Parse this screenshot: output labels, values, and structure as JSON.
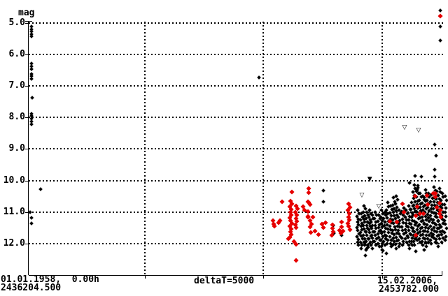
{
  "labels": {
    "mag": "mag",
    "left_date": "01.01.1958,  0.00h",
    "left_jd": "2436204.500",
    "center_delta": "deltaT=5000",
    "right_date": "15.02.2006,  1",
    "right_jd": "2453782.000"
  },
  "colors": {
    "black": "#000000",
    "red": "#e60000",
    "background": "#ffffff"
  },
  "glyphs": {
    "open_triangle_down": "▽",
    "filled_triangle_down": "▼"
  },
  "chart_data": {
    "type": "scatter",
    "title": "",
    "ylabel": "mag",
    "grid": "dotted",
    "y_axis": {
      "inverted": true,
      "ylim": [
        4.4,
        12.7
      ],
      "ticks": [
        5,
        6,
        7,
        8,
        9,
        10,
        11,
        12
      ],
      "tick_labels": [
        "5.0",
        "6.0",
        "7.0",
        "8.0",
        "9.0",
        "10.0",
        "11.0",
        "12.0"
      ]
    },
    "x_axis": {
      "unit": "JD",
      "start_jd": 2436204.5,
      "end_jd": 2453782.0,
      "grid_interval_days": 5000,
      "grid_days": [
        5000,
        10000,
        15000
      ],
      "start_label": "01.01.1958,  0.00h",
      "start_jd_label": "2436204.500",
      "interval_label": "deltaT=5000",
      "end_label": "15.02.2006,  1",
      "end_jd_label": "2453782.000"
    },
    "points_format": "[days_since_start_jd, magnitude]",
    "runs_format": "[days_since_start_jd, mag_start, mag_end, count]",
    "series": [
      {
        "name": "series-black",
        "color": "#000000",
        "marker": "diamond",
        "points": [
          [
            240,
            5.11
          ],
          [
            240,
            5.2
          ],
          [
            240,
            5.28
          ],
          [
            240,
            5.36
          ],
          [
            240,
            5.44
          ],
          [
            240,
            6.3
          ],
          [
            240,
            6.39
          ],
          [
            240,
            6.48
          ],
          [
            240,
            6.62
          ],
          [
            240,
            6.7
          ],
          [
            240,
            6.78
          ],
          [
            265,
            7.38
          ],
          [
            240,
            7.88
          ],
          [
            240,
            7.96
          ],
          [
            240,
            8.05
          ],
          [
            240,
            8.14
          ],
          [
            240,
            8.22
          ],
          [
            620,
            10.28
          ],
          [
            180,
            11.0
          ],
          [
            240,
            11.18
          ],
          [
            240,
            11.36
          ],
          [
            9820,
            6.74
          ],
          [
            12540,
            10.33
          ],
          [
            12540,
            10.67
          ],
          [
            12950,
            11.42
          ],
          [
            12980,
            11.67
          ],
          [
            13310,
            11.74
          ],
          [
            16170,
            10.08
          ],
          [
            16400,
            9.86
          ],
          [
            16670,
            9.88
          ],
          [
            17230,
            8.85
          ],
          [
            17290,
            9.22
          ],
          [
            17230,
            9.66
          ],
          [
            17230,
            9.88
          ],
          [
            16530,
            10.16
          ],
          [
            16530,
            10.24
          ],
          [
            16460,
            10.35
          ],
          [
            17460,
            4.62
          ],
          [
            17460,
            5.12
          ],
          [
            17460,
            5.57
          ],
          [
            14340,
            12.2
          ],
          [
            14310,
            12.38
          ],
          [
            14430,
            12.12
          ],
          [
            15050,
            12.22
          ],
          [
            15190,
            12.3
          ],
          [
            16430,
            12.24
          ],
          [
            16870,
            11.98
          ]
        ],
        "runs": [
          [
            13990,
            10.95,
            12.05,
            13
          ],
          [
            14130,
            11.05,
            12.15,
            12
          ],
          [
            14250,
            10.8,
            12.05,
            13
          ],
          [
            14370,
            11.0,
            12.15,
            12
          ],
          [
            14490,
            10.95,
            11.95,
            11
          ],
          [
            14600,
            11.1,
            12.15,
            11
          ],
          [
            14720,
            11.0,
            12.05,
            11
          ],
          [
            14870,
            11.1,
            12.1,
            11
          ],
          [
            14990,
            10.95,
            12.2,
            13
          ],
          [
            15130,
            11.0,
            12.05,
            11
          ],
          [
            15250,
            10.7,
            12.0,
            12
          ],
          [
            15370,
            10.8,
            12.1,
            13
          ],
          [
            15490,
            10.55,
            12.05,
            14
          ],
          [
            15610,
            10.5,
            12.15,
            15
          ],
          [
            15730,
            10.95,
            12.1,
            12
          ],
          [
            15870,
            10.75,
            12.05,
            12
          ],
          [
            16020,
            10.95,
            11.95,
            11
          ],
          [
            16140,
            10.8,
            12.15,
            13
          ],
          [
            16260,
            10.7,
            12.05,
            13
          ],
          [
            16370,
            10.15,
            11.1,
            10
          ],
          [
            16370,
            11.3,
            12.05,
            8
          ],
          [
            16490,
            10.3,
            11.9,
            15
          ],
          [
            16610,
            10.4,
            11.95,
            15
          ],
          [
            16730,
            10.5,
            12.05,
            15
          ],
          [
            16840,
            10.3,
            12.2,
            17
          ],
          [
            16960,
            10.4,
            11.95,
            15
          ],
          [
            17080,
            10.45,
            12.0,
            15
          ],
          [
            17200,
            10.2,
            11.95,
            16
          ],
          [
            17320,
            10.35,
            12.1,
            16
          ],
          [
            17430,
            10.25,
            11.85,
            15
          ],
          [
            17550,
            10.4,
            11.95,
            14
          ],
          [
            17670,
            10.5,
            11.9,
            12
          ]
        ]
      },
      {
        "name": "series-red",
        "color": "#e60000",
        "marker": "diamond",
        "points": [
          [
            17460,
            4.78
          ],
          [
            11210,
            10.36
          ],
          [
            10800,
            10.67
          ],
          [
            10420,
            11.27
          ],
          [
            10440,
            11.38
          ],
          [
            10470,
            11.45
          ],
          [
            10650,
            11.33
          ],
          [
            10710,
            11.27
          ],
          [
            11060,
            11.84
          ],
          [
            11290,
            11.93
          ],
          [
            11390,
            12.02
          ],
          [
            11390,
            12.53
          ],
          [
            11890,
            10.67
          ],
          [
            11980,
            10.76
          ],
          [
            11680,
            10.82
          ],
          [
            11740,
            10.93
          ],
          [
            11890,
            11.16
          ],
          [
            11980,
            11.27
          ],
          [
            12040,
            11.38
          ],
          [
            12100,
            11.16
          ],
          [
            12180,
            11.6
          ],
          [
            12330,
            11.71
          ],
          [
            12480,
            11.38
          ],
          [
            12540,
            11.49
          ],
          [
            12630,
            11.33
          ],
          [
            11920,
            10.25
          ],
          [
            11920,
            10.39
          ],
          [
            11920,
            10.7
          ],
          [
            11890,
            10.98
          ],
          [
            11890,
            11.14
          ],
          [
            11980,
            11.47
          ],
          [
            12010,
            11.65
          ],
          [
            12920,
            11.4
          ],
          [
            12920,
            11.51
          ],
          [
            12950,
            11.62
          ],
          [
            12890,
            11.73
          ],
          [
            13220,
            11.58
          ],
          [
            13280,
            11.67
          ],
          [
            13360,
            11.6
          ],
          [
            13310,
            11.32
          ],
          [
            13310,
            11.47
          ],
          [
            15340,
            11.29
          ],
          [
            15640,
            11.31
          ],
          [
            15870,
            10.73
          ],
          [
            15930,
            11.0
          ],
          [
            16400,
            10.49
          ],
          [
            16490,
            10.82
          ],
          [
            16430,
            11.11
          ],
          [
            16430,
            11.73
          ],
          [
            16610,
            11.04
          ],
          [
            16760,
            11.04
          ],
          [
            16900,
            10.47
          ],
          [
            16930,
            10.76
          ],
          [
            17170,
            10.41
          ],
          [
            17260,
            10.41
          ],
          [
            17260,
            10.51
          ],
          [
            17320,
            10.84
          ],
          [
            17430,
            10.71
          ],
          [
            17430,
            11.04
          ],
          [
            17460,
            10.93
          ],
          [
            17490,
            11.16
          ]
        ],
        "runs": [
          [
            11150,
            10.65,
            11.8,
            14
          ],
          [
            11390,
            10.8,
            11.5,
            8
          ],
          [
            13600,
            10.75,
            11.55,
            9
          ]
        ]
      },
      {
        "name": "series-fainter-than-open",
        "color": "#000000",
        "marker": "open-triangle-down",
        "points": [
          [
            15960,
            8.36
          ],
          [
            16550,
            8.44
          ],
          [
            14160,
            10.49
          ],
          [
            14870,
            10.84
          ]
        ],
        "runs": []
      },
      {
        "name": "series-fainter-than-filled",
        "color": "#000000",
        "marker": "triangle-down",
        "points": [
          [
            14490,
            9.98
          ]
        ],
        "runs": []
      }
    ]
  }
}
